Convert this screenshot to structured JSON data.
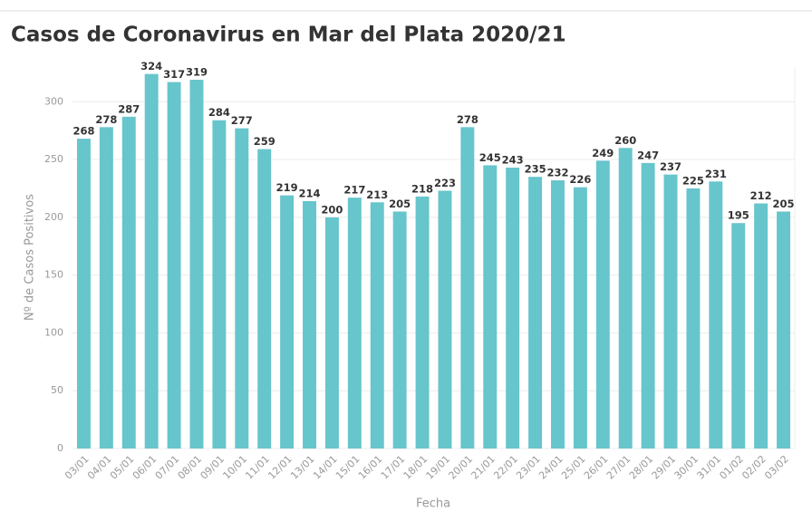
{
  "chart_data": {
    "type": "bar",
    "title": "Casos de Coronavirus en Mar del Plata 2020/21",
    "x_label": "Fecha",
    "y_label": "Nº de Casos Positivos",
    "categories": [
      "03/01",
      "04/01",
      "05/01",
      "06/01",
      "07/01",
      "08/01",
      "09/01",
      "10/01",
      "11/01",
      "12/01",
      "13/01",
      "14/01",
      "15/01",
      "16/01",
      "17/01",
      "18/01",
      "19/01",
      "20/01",
      "21/01",
      "22/01",
      "23/01",
      "24/01",
      "25/01",
      "26/01",
      "27/01",
      "28/01",
      "29/01",
      "30/01",
      "31/01",
      "01/02",
      "02/02",
      "03/02"
    ],
    "values": [
      268,
      278,
      287,
      324,
      317,
      319,
      284,
      277,
      259,
      219,
      214,
      200,
      217,
      213,
      205,
      218,
      223,
      278,
      245,
      243,
      235,
      232,
      226,
      249,
      260,
      247,
      237,
      225,
      231,
      195,
      212,
      205
    ],
    "color": "#67c5cc",
    "ylim": [
      0,
      330
    ],
    "yticks": [
      0,
      50,
      100,
      150,
      200,
      250,
      300
    ],
    "grid": true
  }
}
